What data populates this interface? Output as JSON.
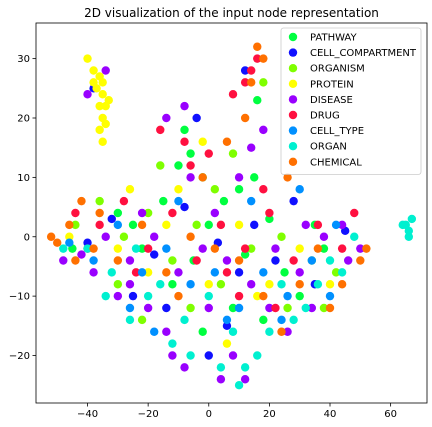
{
  "chart_data": {
    "type": "scatter",
    "title": "2D visualization of the input node representation",
    "xlabel": "",
    "ylabel": "",
    "xlim": [
      -57,
      72
    ],
    "ylim": [
      -28,
      36
    ],
    "x_ticks": [
      -40,
      -20,
      0,
      20,
      40,
      60
    ],
    "y_ticks": [
      -20,
      -10,
      0,
      10,
      20,
      30
    ],
    "grid": false,
    "legend_position": "top-right",
    "series": [
      {
        "name": "PATHWAY",
        "color": "#00ff40",
        "points": [
          [
            -10,
            12
          ],
          [
            -6,
            14
          ],
          [
            -2,
            10
          ],
          [
            5,
            6
          ],
          [
            10,
            8
          ],
          [
            15,
            10
          ],
          [
            -30,
            4
          ],
          [
            -25,
            2
          ],
          [
            -22,
            -2
          ],
          [
            -15,
            6
          ],
          [
            0,
            2
          ],
          [
            -5,
            -4
          ],
          [
            12,
            -3
          ],
          [
            20,
            3
          ],
          [
            25,
            -6
          ],
          [
            30,
            -10
          ],
          [
            38,
            -2
          ],
          [
            -45,
            -2
          ],
          [
            8,
            -12
          ],
          [
            -12,
            -8
          ],
          [
            18,
            -14
          ],
          [
            -8,
            18
          ],
          [
            16,
            23
          ],
          [
            35,
            2
          ],
          [
            -2,
            -16
          ]
        ]
      },
      {
        "name": "CELL_COMPARTMENT",
        "color": "#1010ff",
        "points": [
          [
            -40,
            -1
          ],
          [
            -32,
            3
          ],
          [
            -18,
            -3
          ],
          [
            -8,
            5
          ],
          [
            3,
            -1
          ],
          [
            10,
            -6
          ],
          [
            22,
            -4
          ],
          [
            35,
            -8
          ],
          [
            45,
            1
          ],
          [
            -25,
            -10
          ],
          [
            6,
            -15
          ],
          [
            15,
            2
          ],
          [
            -4,
            20
          ],
          [
            12,
            28
          ],
          [
            -38,
            25
          ],
          [
            0,
            -20
          ],
          [
            28,
            6
          ],
          [
            -14,
            -12
          ]
        ]
      },
      {
        "name": "ORGANISM",
        "color": "#7fff00",
        "points": [
          [
            -36,
            6
          ],
          [
            -28,
            0
          ],
          [
            -20,
            4
          ],
          [
            -12,
            -4
          ],
          [
            -4,
            2
          ],
          [
            4,
            -8
          ],
          [
            14,
            -2
          ],
          [
            24,
            0
          ],
          [
            34,
            -4
          ],
          [
            42,
            -6
          ],
          [
            -44,
            2
          ],
          [
            -16,
            12
          ],
          [
            8,
            14
          ],
          [
            18,
            26
          ],
          [
            -6,
            -12
          ],
          [
            26,
            -12
          ],
          [
            -30,
            -8
          ],
          [
            2,
            8
          ],
          [
            38,
            -12
          ],
          [
            -22,
            -14
          ]
        ]
      },
      {
        "name": "PROTEIN",
        "color": "#ffff00",
        "points": [
          [
            -40,
            30
          ],
          [
            -38,
            28
          ],
          [
            -36,
            27
          ],
          [
            -37,
            25
          ],
          [
            -35,
            24
          ],
          [
            -36,
            22
          ],
          [
            -35,
            20
          ],
          [
            -36,
            18
          ],
          [
            -35,
            16
          ],
          [
            -34,
            22
          ],
          [
            -33,
            23
          ],
          [
            -34,
            19
          ],
          [
            -38,
            26
          ],
          [
            -35,
            26
          ],
          [
            -30,
            -2
          ],
          [
            -20,
            -6
          ],
          [
            -10,
            8
          ],
          [
            0,
            -8
          ],
          [
            10,
            2
          ],
          [
            20,
            -8
          ],
          [
            30,
            -2
          ],
          [
            -46,
            0
          ],
          [
            -26,
            8
          ],
          [
            6,
            -18
          ],
          [
            16,
            -10
          ],
          [
            -2,
            16
          ],
          [
            40,
            -8
          ],
          [
            -14,
            2
          ]
        ]
      },
      {
        "name": "DISEASE",
        "color": "#9900ff",
        "points": [
          [
            -42,
            -3
          ],
          [
            -34,
            0
          ],
          [
            -26,
            -4
          ],
          [
            -18,
            0
          ],
          [
            -10,
            -6
          ],
          [
            -2,
            -2
          ],
          [
            6,
            -4
          ],
          [
            14,
            -8
          ],
          [
            22,
            -2
          ],
          [
            30,
            -6
          ],
          [
            38,
            0
          ],
          [
            46,
            -4
          ],
          [
            -30,
            -10
          ],
          [
            -14,
            -16
          ],
          [
            -8,
            -22
          ],
          [
            8,
            -20
          ],
          [
            12,
            -24
          ],
          [
            26,
            -16
          ],
          [
            34,
            -12
          ],
          [
            -38,
            -6
          ],
          [
            -22,
            4
          ],
          [
            -6,
            10
          ],
          [
            2,
            4
          ],
          [
            10,
            10
          ],
          [
            -14,
            20
          ],
          [
            -8,
            22
          ],
          [
            18,
            18
          ],
          [
            14,
            15
          ],
          [
            -40,
            24
          ],
          [
            -34,
            28
          ],
          [
            44,
            2
          ],
          [
            50,
            -2
          ],
          [
            -48,
            -4
          ],
          [
            -20,
            -12
          ],
          [
            0,
            -12
          ],
          [
            20,
            -12
          ],
          [
            -12,
            -20
          ],
          [
            4,
            -24
          ],
          [
            -26,
            -8
          ],
          [
            32,
            2
          ]
        ]
      },
      {
        "name": "DRUG",
        "color": "#ff1040",
        "points": [
          [
            -44,
            4
          ],
          [
            -36,
            2
          ],
          [
            -28,
            6
          ],
          [
            -20,
            -2
          ],
          [
            -12,
            4
          ],
          [
            -4,
            -4
          ],
          [
            4,
            2
          ],
          [
            12,
            -2
          ],
          [
            20,
            4
          ],
          [
            28,
            -4
          ],
          [
            36,
            2
          ],
          [
            44,
            -2
          ],
          [
            -8,
            16
          ],
          [
            0,
            14
          ],
          [
            8,
            24
          ],
          [
            12,
            26
          ],
          [
            16,
            30
          ],
          [
            14,
            28
          ],
          [
            -16,
            18
          ],
          [
            -6,
            12
          ],
          [
            10,
            -10
          ],
          [
            22,
            -12
          ],
          [
            -24,
            -6
          ],
          [
            48,
            4
          ],
          [
            -40,
            -2
          ],
          [
            6,
            -6
          ],
          [
            18,
            8
          ]
        ]
      },
      {
        "name": "CELL_TYPE",
        "color": "#0090ff",
        "points": [
          [
            -46,
            -1
          ],
          [
            -38,
            -4
          ],
          [
            -30,
            2
          ],
          [
            -22,
            -6
          ],
          [
            -14,
            -2
          ],
          [
            -6,
            -8
          ],
          [
            2,
            -6
          ],
          [
            10,
            -12
          ],
          [
            18,
            -6
          ],
          [
            26,
            -10
          ],
          [
            34,
            -4
          ],
          [
            42,
            2
          ],
          [
            -26,
            -12
          ],
          [
            -18,
            -16
          ],
          [
            6,
            -14
          ],
          [
            24,
            -14
          ],
          [
            -10,
            6
          ],
          [
            14,
            6
          ],
          [
            40,
            -10
          ],
          [
            30,
            8
          ]
        ]
      },
      {
        "name": "ORGAN",
        "color": "#00f0d0",
        "points": [
          [
            -48,
            -2
          ],
          [
            -40,
            -2
          ],
          [
            -32,
            -6
          ],
          [
            -24,
            -2
          ],
          [
            -16,
            -8
          ],
          [
            -8,
            -14
          ],
          [
            0,
            -10
          ],
          [
            8,
            -16
          ],
          [
            16,
            -20
          ],
          [
            24,
            -8
          ],
          [
            32,
            -12
          ],
          [
            40,
            -4
          ],
          [
            48,
            0
          ],
          [
            -12,
            -18
          ],
          [
            -6,
            -20
          ],
          [
            4,
            -22
          ],
          [
            10,
            -25
          ],
          [
            12,
            -22
          ],
          [
            64,
            2
          ],
          [
            66,
            1
          ],
          [
            67,
            3
          ],
          [
            66,
            0
          ],
          [
            65,
            2
          ],
          [
            -34,
            -10
          ],
          [
            -26,
            -14
          ],
          [
            20,
            -16
          ],
          [
            28,
            -14
          ],
          [
            36,
            -8
          ],
          [
            -20,
            -10
          ],
          [
            44,
            -6
          ]
        ]
      },
      {
        "name": "CHEMICAL",
        "color": "#ff7000",
        "points": [
          [
            -52,
            0
          ],
          [
            -50,
            -1
          ],
          [
            -46,
            2
          ],
          [
            -42,
            6
          ],
          [
            -38,
            -2
          ],
          [
            -30,
            -4
          ],
          [
            -22,
            2
          ],
          [
            -14,
            -6
          ],
          [
            -6,
            0
          ],
          [
            2,
            -2
          ],
          [
            10,
            -4
          ],
          [
            18,
            -10
          ],
          [
            24,
            -16
          ],
          [
            30,
            -8
          ],
          [
            36,
            -2
          ],
          [
            44,
            -8
          ],
          [
            50,
            -4
          ],
          [
            52,
            -2
          ],
          [
            -36,
            4
          ],
          [
            -44,
            -4
          ],
          [
            -10,
            -10
          ],
          [
            12,
            20
          ],
          [
            16,
            32
          ],
          [
            14,
            26
          ],
          [
            18,
            30
          ],
          [
            6,
            16
          ],
          [
            -2,
            10
          ],
          [
            26,
            10
          ],
          [
            40,
            -12
          ]
        ]
      }
    ]
  }
}
